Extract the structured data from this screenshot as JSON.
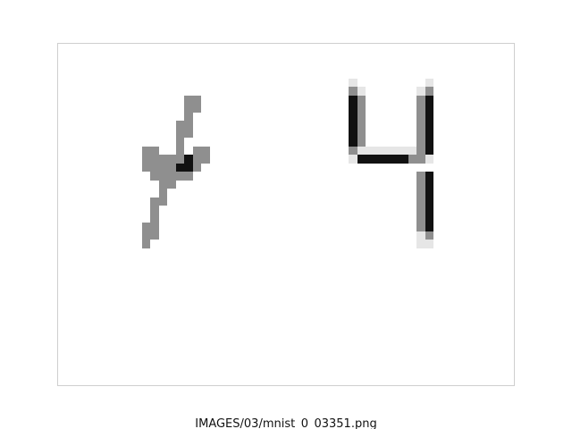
{
  "figure": {
    "caption": "IMAGES/03/mnist_0_03351.png"
  },
  "digits": [
    {
      "name": "digit-left-4",
      "rows": [
        "..........",
        "......##..",
        "......##..",
        "......#...",
        ".....##...",
        ".....##...",
        ".....#....",
        ".##..#.##.",
        ".#####X##.",
        ".####XX#..",
        "..#####...",
        "...##.....",
        "...#......",
        "..##......",
        "..#.......",
        "..#.......",
        ".##.......",
        ".##.......",
        ".#........",
        "..........",
        ".........."
      ]
    },
    {
      "name": "digit-right-4",
      "rows": [
        "..........",
        "~........~",
        "#~......~#",
        "X#......#X",
        "X#......#X",
        "X#......#X",
        "X#......#X",
        "X#......#X",
        "X#......#X",
        "#~~~~~~~#X",
        "~XXXXXX##~",
        "..........",
        "........#X",
        "........#X",
        "........#X",
        "........#X",
        "........#X",
        "........#X",
        "........#X",
        "........~#",
        "........~~"
      ]
    }
  ]
}
